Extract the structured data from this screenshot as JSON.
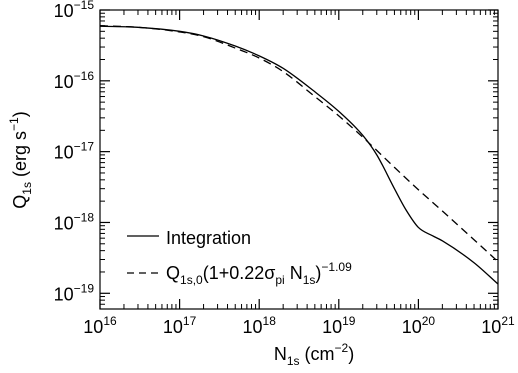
{
  "chart_data": {
    "type": "line",
    "xlabel": {
      "main": "N",
      "sub": "1s",
      "tail": " (cm",
      "sup": "−2",
      "close": ")"
    },
    "ylabel": {
      "main": "Q",
      "sub": "1s",
      "tail": " (erg s",
      "sup": "−1",
      "close": ")"
    },
    "xscale": "log",
    "yscale": "log",
    "xlim": [
      1e+16,
      1e+21
    ],
    "ylim": [
      6e-20,
      1e-15
    ],
    "x_ticks": [
      {
        "value": 1e+16,
        "base": "10",
        "exp": "16"
      },
      {
        "value": 1e+17,
        "base": "10",
        "exp": "17"
      },
      {
        "value": 1e+18,
        "base": "10",
        "exp": "18"
      },
      {
        "value": 1e+19,
        "base": "10",
        "exp": "19"
      },
      {
        "value": 1e+20,
        "base": "10",
        "exp": "20"
      },
      {
        "value": 1e+21,
        "base": "10",
        "exp": "21"
      }
    ],
    "y_ticks": [
      {
        "value": 1e-19,
        "base": "10",
        "exp": "−19"
      },
      {
        "value": 1e-18,
        "base": "10",
        "exp": "−18"
      },
      {
        "value": 1e-17,
        "base": "10",
        "exp": "−17"
      },
      {
        "value": 1e-16,
        "base": "10",
        "exp": "−16"
      },
      {
        "value": 1e-15,
        "base": "10",
        "exp": "−15"
      }
    ],
    "grid": false,
    "legend_position": "bottom-left",
    "series": [
      {
        "name": "Integration",
        "style": "solid",
        "color": "#000000",
        "x": [
          1e+16,
          3e+16,
          1e+17,
          2e+17,
          5e+17,
          1e+18,
          2e+18,
          5e+18,
          1e+19,
          2e+19,
          3e+19,
          5e+19,
          7e+19,
          1e+20,
          1.5e+20,
          2e+20,
          5e+20,
          1e+21
        ],
        "y": [
          5.9e-16,
          5.7e-16,
          5e-16,
          4.3e-16,
          3.1e-16,
          2.25e-16,
          1.5e-16,
          7e-17,
          3.7e-17,
          1.7e-17,
          9e-18,
          3e-18,
          1.5e-18,
          8.5e-19,
          6.5e-19,
          5.5e-19,
          2.7e-19,
          1.35e-19
        ]
      },
      {
        "name": "Q1s,0(1+0.22σpi N1s)−1.09",
        "legend_label": {
          "main": "Q",
          "sub1": "1s,0",
          "mid1": "(1+0.22σ",
          "sub2": "pi",
          "mid2": " N",
          "sub3": "1s",
          "close": ")",
          "sup": "−1.09"
        },
        "style": "dashed",
        "color": "#000000",
        "x": [
          1e+16,
          3e+16,
          1e+17,
          2e+17,
          5e+17,
          1e+18,
          2e+18,
          5e+18,
          1e+19,
          2e+19,
          5e+19,
          1e+20,
          2e+20,
          5e+20,
          1e+21
        ],
        "y": [
          6e-16,
          5.7e-16,
          4.9e-16,
          4.2e-16,
          2.9e-16,
          2.1e-16,
          1.35e-16,
          6e-17,
          3.2e-17,
          1.6e-17,
          6e-18,
          2.9e-18,
          1.45e-18,
          5.7e-19,
          2.8e-19
        ]
      }
    ],
    "legend": [
      {
        "series": "Integration",
        "label_text": "Integration"
      }
    ]
  }
}
